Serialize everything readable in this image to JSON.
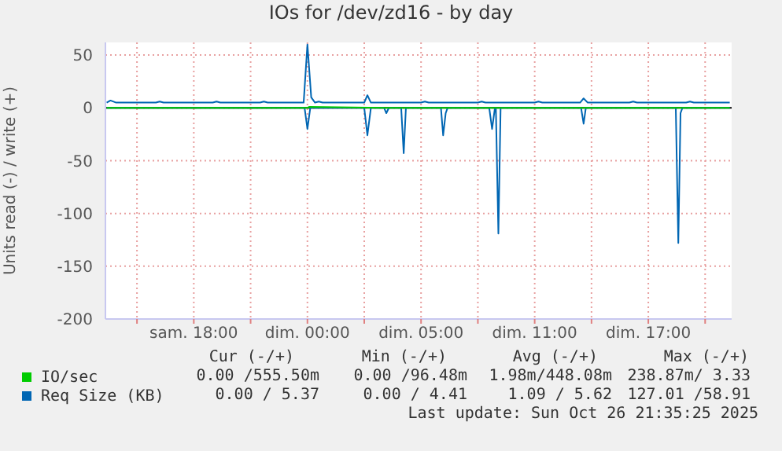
{
  "chart_data": {
    "type": "line",
    "title": "IOs for /dev/zd16 - by day",
    "ylabel": "Units read (-) / write (+)",
    "xlim": [
      "2025-10-25T11:20",
      "2025-10-26T20:24"
    ],
    "ylim": [
      -200,
      62
    ],
    "xticks": [
      {
        "value": "2025-10-25T13:00",
        "label": null
      },
      {
        "value": "2025-10-25T16:00",
        "label": "sam. 18:00"
      },
      {
        "value": "2025-10-25T19:00",
        "label": null
      },
      {
        "value": "2025-10-25T22:00",
        "label": "dim. 00:00"
      },
      {
        "value": "2025-10-26T01:00",
        "label": null
      },
      {
        "value": "2025-10-26T04:00",
        "label": "dim. 05:00"
      },
      {
        "value": "2025-10-26T07:00",
        "label": null
      },
      {
        "value": "2025-10-26T10:00",
        "label": "dim. 11:00"
      },
      {
        "value": "2025-10-26T13:00",
        "label": null
      },
      {
        "value": "2025-10-26T16:00",
        "label": "dim. 17:00"
      },
      {
        "value": "2025-10-26T19:00",
        "label": null
      }
    ],
    "yticks": [
      -200,
      -150,
      -100,
      -50,
      0,
      50
    ],
    "grid": true,
    "legend": "bottom",
    "ref_lines": [
      {
        "axis": "y",
        "value": 0,
        "color": "#000000"
      }
    ],
    "series": [
      {
        "name": "IO/sec",
        "color": "#00cc00",
        "x": [
          "2025-10-25T11:24",
          "2025-10-25T22:00",
          "2025-10-25T22:06",
          "2025-10-26T02:00",
          "2025-10-26T02:12",
          "2025-10-26T20:18"
        ],
        "values": [
          0,
          0,
          1,
          0,
          0,
          0
        ]
      },
      {
        "name": "Req Size (KB)",
        "color": "#0066b3",
        "x": [
          "2025-10-25T11:24",
          "2025-10-25T11:36",
          "2025-10-25T11:54",
          "2025-10-25T14:00",
          "2025-10-25T14:12",
          "2025-10-25T14:24",
          "2025-10-25T17:00",
          "2025-10-25T17:12",
          "2025-10-25T17:24",
          "2025-10-25T19:30",
          "2025-10-25T19:42",
          "2025-10-25T19:54",
          "2025-10-25T21:48",
          "2025-10-25T22:00",
          "2025-10-25T22:12",
          "2025-10-25T22:24",
          "2025-10-25T22:36",
          "2025-10-25T22:48",
          "2025-10-26T01:00",
          "2025-10-26T01:10",
          "2025-10-26T01:21",
          "2025-10-26T04:00",
          "2025-10-26T04:12",
          "2025-10-26T04:24",
          "2025-10-26T07:00",
          "2025-10-26T07:12",
          "2025-10-26T07:24",
          "2025-10-26T10:00",
          "2025-10-26T10:12",
          "2025-10-26T10:24",
          "2025-10-26T12:24",
          "2025-10-26T12:35",
          "2025-10-26T12:48",
          "2025-10-26T15:00",
          "2025-10-26T15:12",
          "2025-10-26T15:24",
          "2025-10-26T18:00",
          "2025-10-26T18:12",
          "2025-10-26T18:24",
          "2025-10-26T20:18"
        ],
        "values": [
          5,
          7,
          5,
          5,
          6,
          5,
          5,
          6,
          5,
          5,
          6,
          5,
          5,
          60,
          10,
          5,
          6,
          5,
          5,
          12,
          5,
          5,
          6,
          5,
          5,
          6,
          5,
          5,
          6,
          5,
          5,
          9,
          5,
          5,
          6,
          5,
          5,
          6,
          5,
          5
        ]
      },
      {
        "color": "#0066b3",
        "x": [
          "2025-10-25T11:24",
          "2025-10-25T21:51",
          "2025-10-25T22:00",
          "2025-10-25T22:09",
          "2025-10-26T01:00",
          "2025-10-26T01:10",
          "2025-10-26T01:21",
          "2025-10-26T02:03",
          "2025-10-26T02:10",
          "2025-10-26T02:18",
          "2025-10-26T02:57",
          "2025-10-26T03:05",
          "2025-10-26T03:12",
          "2025-10-26T05:03",
          "2025-10-26T05:10",
          "2025-10-26T05:18",
          "2025-10-26T05:24",
          "2025-10-26T07:36",
          "2025-10-26T07:45",
          "2025-10-26T07:54",
          "2025-10-26T07:57",
          "2025-10-26T08:05",
          "2025-10-26T08:12",
          "2025-10-26T12:27",
          "2025-10-26T12:35",
          "2025-10-26T12:42",
          "2025-10-26T17:27",
          "2025-10-26T17:35",
          "2025-10-26T17:42",
          "2025-10-26T17:48",
          "2025-10-26T20:18"
        ],
        "values": [
          0,
          0,
          -20,
          0,
          0,
          -26,
          0,
          0,
          -5,
          0,
          0,
          -43,
          0,
          0,
          -26,
          -5,
          0,
          0,
          -20,
          0,
          0,
          -119,
          0,
          0,
          -15,
          0,
          0,
          -128,
          -5,
          0,
          0
        ]
      }
    ],
    "annotations": [
      "Cur (-/+)",
      "Min (-/+)",
      "Avg (-/+)",
      "Max (-/+)",
      "0.00 /555.50m",
      "0.00 /96.48m",
      "1.98m/448.08m",
      "238.87m/ 3.33",
      "0.00 / 5.37",
      "0.00 / 4.41",
      "1.09 / 5.62",
      "127.01 /58.91",
      "Last update: Sun Oct 26 21:35:25 2025"
    ]
  }
}
